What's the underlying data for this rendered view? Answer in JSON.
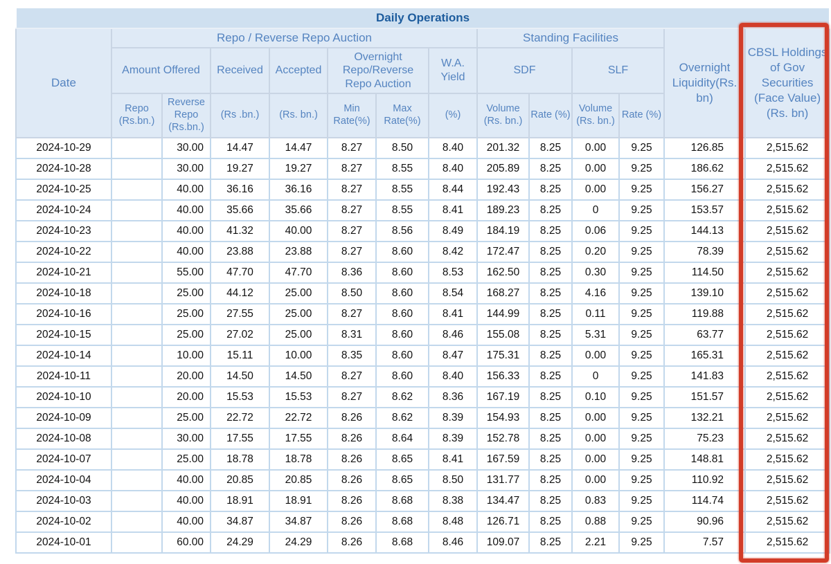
{
  "colors": {
    "title_bar_bg": "#cfe0f0",
    "title_text": "#1d5c9d",
    "header_bg": "#dfeaf6",
    "header_text": "#5584c0",
    "grid_line": "#c2d8ec",
    "annotation_red": "#d23c28"
  },
  "table": {
    "title": "Daily Operations",
    "headers": {
      "date": "Date",
      "repo_group": "Repo / Reverse Repo Auction",
      "standing_group": "Standing Facilities",
      "amount_offered": "Amount Offered",
      "received": "Received",
      "accepted": "Accepted",
      "overnight_auction": "Overnight Repo/Reverse Repo Auction",
      "wa_yield": "W.A. Yield",
      "sdf": "SDF",
      "slf": "SLF",
      "overnight_liquidity": "Overnight Liquidity(Rs. bn)",
      "cbsl": "CBSL Holdings of Gov Securities (Face Value) (Rs. bn)",
      "sub": {
        "repo": "Repo (Rs.bn.)",
        "reverse_repo": "Reverse Repo (Rs.bn.)",
        "received_unit": "(Rs .bn.)",
        "accepted_unit": "(Rs. bn.)",
        "min_rate": "Min Rate(%)",
        "max_rate": "Max Rate(%)",
        "yield_unit": "(%)",
        "sdf_volume": "Volume (Rs. bn.)",
        "sdf_rate": "Rate (%)",
        "slf_volume": "Volume (Rs. bn.)",
        "slf_rate": "Rate (%)"
      }
    },
    "column_keys": [
      "date",
      "repo-offered",
      "reverse-repo-offered",
      "received",
      "accepted",
      "min-rate",
      "max-rate",
      "wa-yield",
      "sdf-volume",
      "sdf-rate",
      "slf-volume",
      "slf-rate",
      "overnight-liquidity",
      "cbsl-holdings"
    ],
    "rows": [
      [
        "2024-10-29",
        "",
        "30.00",
        "14.47",
        "14.47",
        "8.27",
        "8.50",
        "8.40",
        "201.32",
        "8.25",
        "0.00",
        "9.25",
        "126.85",
        "2,515.62"
      ],
      [
        "2024-10-28",
        "",
        "30.00",
        "19.27",
        "19.27",
        "8.27",
        "8.55",
        "8.40",
        "205.89",
        "8.25",
        "0.00",
        "9.25",
        "186.62",
        "2,515.62"
      ],
      [
        "2024-10-25",
        "",
        "40.00",
        "36.16",
        "36.16",
        "8.27",
        "8.55",
        "8.44",
        "192.43",
        "8.25",
        "0.00",
        "9.25",
        "156.27",
        "2,515.62"
      ],
      [
        "2024-10-24",
        "",
        "40.00",
        "35.66",
        "35.66",
        "8.27",
        "8.55",
        "8.41",
        "189.23",
        "8.25",
        "0",
        "9.25",
        "153.57",
        "2,515.62"
      ],
      [
        "2024-10-23",
        "",
        "40.00",
        "41.32",
        "40.00",
        "8.27",
        "8.56",
        "8.49",
        "184.19",
        "8.25",
        "0.06",
        "9.25",
        "144.13",
        "2,515.62"
      ],
      [
        "2024-10-22",
        "",
        "40.00",
        "23.88",
        "23.88",
        "8.27",
        "8.60",
        "8.42",
        "172.47",
        "8.25",
        "0.20",
        "9.25",
        "78.39",
        "2,515.62"
      ],
      [
        "2024-10-21",
        "",
        "55.00",
        "47.70",
        "47.70",
        "8.36",
        "8.60",
        "8.53",
        "162.50",
        "8.25",
        "0.30",
        "9.25",
        "114.50",
        "2,515.62"
      ],
      [
        "2024-10-18",
        "",
        "25.00",
        "44.12",
        "25.00",
        "8.50",
        "8.60",
        "8.54",
        "168.27",
        "8.25",
        "4.16",
        "9.25",
        "139.10",
        "2,515.62"
      ],
      [
        "2024-10-16",
        "",
        "25.00",
        "27.55",
        "25.00",
        "8.27",
        "8.60",
        "8.41",
        "144.99",
        "8.25",
        "0.11",
        "9.25",
        "119.88",
        "2,515.62"
      ],
      [
        "2024-10-15",
        "",
        "25.00",
        "27.02",
        "25.00",
        "8.31",
        "8.60",
        "8.46",
        "155.08",
        "8.25",
        "5.31",
        "9.25",
        "63.77",
        "2,515.62"
      ],
      [
        "2024-10-14",
        "",
        "10.00",
        "15.11",
        "10.00",
        "8.35",
        "8.60",
        "8.47",
        "175.31",
        "8.25",
        "0.00",
        "9.25",
        "165.31",
        "2,515.62"
      ],
      [
        "2024-10-11",
        "",
        "20.00",
        "14.50",
        "14.50",
        "8.27",
        "8.60",
        "8.40",
        "156.33",
        "8.25",
        "0",
        "9.25",
        "141.83",
        "2,515.62"
      ],
      [
        "2024-10-10",
        "",
        "20.00",
        "15.53",
        "15.53",
        "8.27",
        "8.62",
        "8.36",
        "167.19",
        "8.25",
        "0.10",
        "9.25",
        "151.57",
        "2,515.62"
      ],
      [
        "2024-10-09",
        "",
        "25.00",
        "22.72",
        "22.72",
        "8.26",
        "8.62",
        "8.39",
        "154.93",
        "8.25",
        "0.00",
        "9.25",
        "132.21",
        "2,515.62"
      ],
      [
        "2024-10-08",
        "",
        "30.00",
        "17.55",
        "17.55",
        "8.26",
        "8.64",
        "8.39",
        "152.78",
        "8.25",
        "0.00",
        "9.25",
        "75.23",
        "2,515.62"
      ],
      [
        "2024-10-07",
        "",
        "25.00",
        "18.78",
        "18.78",
        "8.26",
        "8.65",
        "8.41",
        "167.59",
        "8.25",
        "0.00",
        "9.25",
        "148.81",
        "2,515.62"
      ],
      [
        "2024-10-04",
        "",
        "40.00",
        "20.85",
        "20.85",
        "8.26",
        "8.65",
        "8.50",
        "131.77",
        "8.25",
        "0.00",
        "9.25",
        "110.92",
        "2,515.62"
      ],
      [
        "2024-10-03",
        "",
        "40.00",
        "18.91",
        "18.91",
        "8.26",
        "8.68",
        "8.38",
        "134.47",
        "8.25",
        "0.83",
        "9.25",
        "114.74",
        "2,515.62"
      ],
      [
        "2024-10-02",
        "",
        "40.00",
        "34.87",
        "34.87",
        "8.26",
        "8.68",
        "8.48",
        "126.71",
        "8.25",
        "0.88",
        "9.25",
        "90.96",
        "2,515.62"
      ],
      [
        "2024-10-01",
        "",
        "60.00",
        "24.29",
        "24.29",
        "8.26",
        "8.68",
        "8.46",
        "109.07",
        "8.25",
        "2.21",
        "9.25",
        "7.57",
        "2,515.62"
      ]
    ]
  },
  "annotation": {
    "type": "hand-drawn red marker rectangle",
    "color": "#d23c28",
    "target": "cbsl-holdings-column"
  }
}
